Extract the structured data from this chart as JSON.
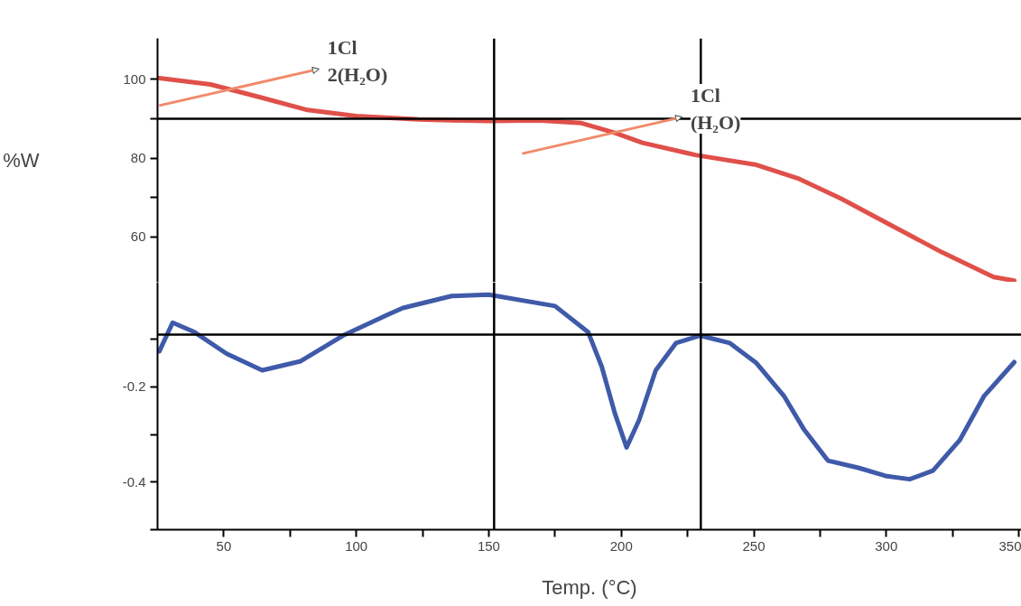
{
  "chart_data": [
    {
      "type": "line",
      "ylabel": "%W",
      "xlim": [
        25,
        351
      ],
      "ylim": [
        48.5,
        110.4
      ],
      "yticks": [
        {
          "value": 60,
          "label": "60"
        },
        {
          "value": 70,
          "label": null
        },
        {
          "value": 80,
          "label": "80"
        },
        {
          "value": 90,
          "label": null
        },
        {
          "value": 100,
          "label": "100"
        }
      ],
      "tick_labels": "y",
      "grid": false,
      "x": [
        25.7,
        45,
        63.5,
        81,
        100,
        123.6,
        150,
        168.6,
        185,
        197.6,
        208,
        228,
        251,
        266.5,
        283,
        302,
        321,
        340.5,
        348.3
      ],
      "series": [
        {
          "color": "#e0504a",
          "values": [
            100.3,
            98.7,
            95.5,
            92.3,
            90.7,
            89.8,
            89.4,
            89.6,
            88.9,
            86.4,
            83.9,
            80.8,
            78.3,
            74.9,
            69.7,
            62.9,
            56.1,
            49.8,
            48.9
          ]
        }
      ],
      "ref_lines": [
        {
          "axis": "y",
          "value": 90,
          "color": "#000000"
        },
        {
          "axis": "x",
          "value": 152,
          "color": "#000000"
        },
        {
          "axis": "x",
          "value": 230,
          "color": "#000000"
        }
      ],
      "annotations": [
        {
          "text": "1Cl\n2(H₂O)",
          "x": 68,
          "y": 95.2
        },
        {
          "text": "1Cl\n(H₂O)",
          "x": 205,
          "y": 83
        }
      ]
    },
    {
      "type": "line",
      "xlabel": "Temp. (°C)",
      "xlim": [
        25,
        351
      ],
      "ylim": [
        -0.5,
        0.02
      ],
      "xticks": [
        {
          "value": 50,
          "label": "50"
        },
        {
          "value": 75,
          "label": null
        },
        {
          "value": 100,
          "label": "100"
        },
        {
          "value": 125,
          "label": null
        },
        {
          "value": 150,
          "label": "150"
        },
        {
          "value": 175,
          "label": null
        },
        {
          "value": 200,
          "label": "200"
        },
        {
          "value": 225,
          "label": null
        },
        {
          "value": 250,
          "label": "250"
        },
        {
          "value": 275,
          "label": null
        },
        {
          "value": 300,
          "label": "300"
        },
        {
          "value": 325,
          "label": null
        },
        {
          "value": 350,
          "label": "350"
        }
      ],
      "yticks": [
        {
          "value": -0.5,
          "label": null
        },
        {
          "value": -0.4,
          "label": "-0.4"
        },
        {
          "value": -0.3,
          "label": null
        },
        {
          "value": -0.2,
          "label": "-0.2"
        },
        {
          "value": -0.1,
          "label": null
        }
      ],
      "grid": false,
      "x": [
        25.7,
        30.7,
        39,
        51,
        64.5,
        79,
        95,
        112,
        117.6,
        136,
        150,
        175,
        187.5,
        192.6,
        197.6,
        202,
        206.7,
        213,
        220.6,
        229.7,
        241,
        251,
        261.5,
        269,
        278,
        289.5,
        299.7,
        308.8,
        317.6,
        327.7,
        336.8,
        348.3
      ],
      "series": [
        {
          "color": "#3f5aa8",
          "values": [
            -0.125,
            -0.065,
            -0.085,
            -0.13,
            -0.165,
            -0.146,
            -0.092,
            -0.048,
            -0.034,
            -0.009,
            -0.006,
            -0.03,
            -0.085,
            -0.157,
            -0.256,
            -0.327,
            -0.27,
            -0.165,
            -0.108,
            -0.092,
            -0.108,
            -0.15,
            -0.22,
            -0.29,
            -0.355,
            -0.37,
            -0.387,
            -0.394,
            -0.376,
            -0.312,
            -0.22,
            -0.148
          ]
        }
      ],
      "ref_lines": [
        {
          "axis": "y",
          "value": -0.09,
          "color": "#000000"
        },
        {
          "axis": "x",
          "value": 152,
          "color": "#000000"
        },
        {
          "axis": "x",
          "value": 230,
          "color": "#000000"
        }
      ]
    }
  ]
}
